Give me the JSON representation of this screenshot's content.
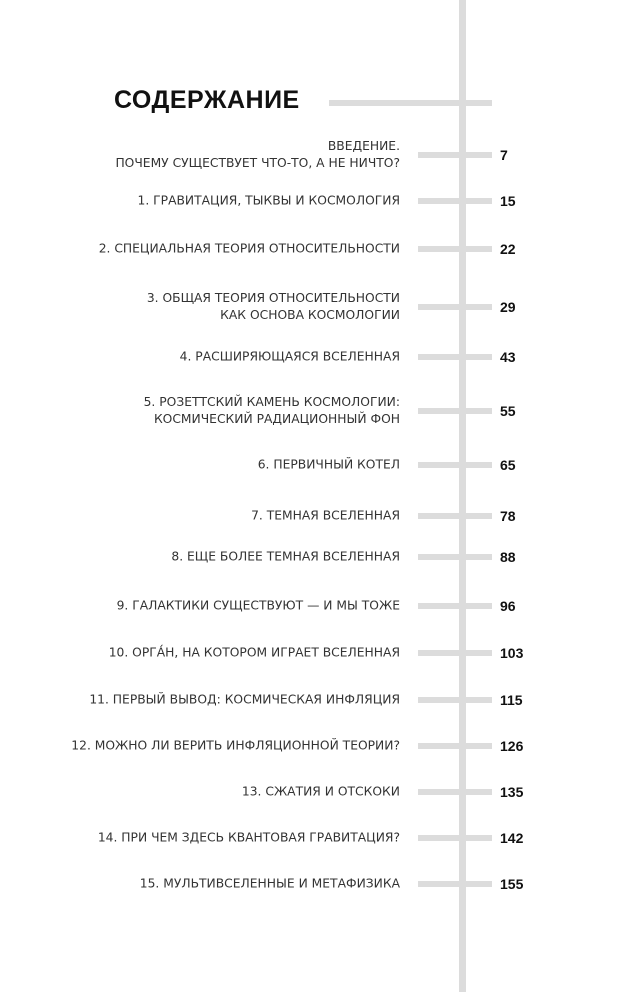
{
  "title": "СОДЕРЖАНИЕ",
  "entries": [
    {
      "label": "ВВЕДЕНИЕ.\nПОЧЕМУ СУЩЕСТВУЕТ ЧТО-ТО, А НЕ НИЧТО?",
      "page": "7"
    },
    {
      "label": "1. ГРАВИТАЦИЯ, ТЫКВЫ И КОСМОЛОГИЯ",
      "page": "15"
    },
    {
      "label": "2. СПЕЦИАЛЬНАЯ ТЕОРИЯ ОТНОСИТЕЛЬНОСТИ",
      "page": "22"
    },
    {
      "label": "3. ОБЩАЯ ТЕОРИЯ ОТНОСИТЕЛЬНОСТИ\nКАК ОСНОВА КОСМОЛОГИИ",
      "page": "29"
    },
    {
      "label": "4. РАСШИРЯЮЩАЯСЯ ВСЕЛЕННАЯ",
      "page": "43"
    },
    {
      "label": "5. РОЗЕТТСКИЙ КАМЕНЬ КОСМОЛОГИИ:\nКОСМИЧЕСКИЙ РАДИАЦИОННЫЙ ФОН",
      "page": "55"
    },
    {
      "label": "6. ПЕРВИЧНЫЙ КОТЕЛ",
      "page": "65"
    },
    {
      "label": "7. ТЕМНАЯ ВСЕЛЕННАЯ",
      "page": "78"
    },
    {
      "label": "8. ЕЩЕ БОЛЕЕ ТЕМНАЯ ВСЕЛЕННАЯ",
      "page": "88"
    },
    {
      "label": "9. ГАЛАКТИКИ СУЩЕСТВУЮТ — И МЫ ТОЖЕ",
      "page": "96"
    },
    {
      "label": "10. ОРГА́Н, НА КОТОРОМ ИГРАЕТ ВСЕЛЕННАЯ",
      "page": "103"
    },
    {
      "label": "11. ПЕРВЫЙ ВЫВОД: КОСМИЧЕСКАЯ ИНФЛЯЦИЯ",
      "page": "115"
    },
    {
      "label": "12. МОЖНО ЛИ ВЕРИТЬ ИНФЛЯЦИОННОЙ ТЕОРИИ?",
      "page": "126"
    },
    {
      "label": "13. СЖАТИЯ И ОТСКОКИ",
      "page": "135"
    },
    {
      "label": "14. ПРИ ЧЕМ ЗДЕСЬ КВАНТОВАЯ ГРАВИТАЦИЯ?",
      "page": "142"
    },
    {
      "label": "15. МУЛЬТИВСЕЛЕННЫЕ И МЕТАФИЗИКА",
      "page": "155"
    }
  ]
}
